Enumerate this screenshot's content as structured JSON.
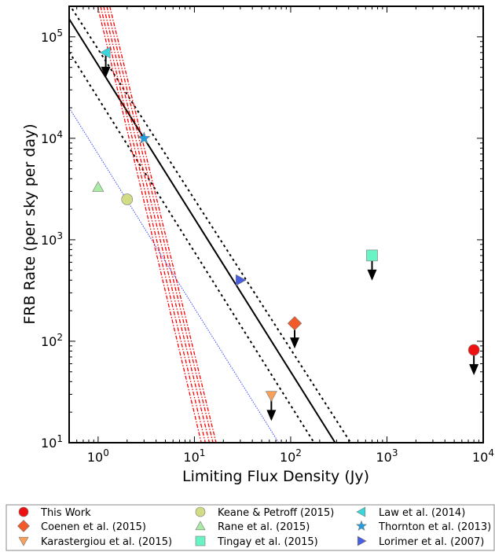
{
  "chart_data": {
    "type": "scatter",
    "xlabel": "Limiting Flux Density (Jy)",
    "ylabel": "FRB Rate (per sky per day)",
    "xscale": "log",
    "yscale": "log",
    "xlim": [
      0.5,
      10000
    ],
    "ylim": [
      10,
      200000
    ],
    "x_ticks": [
      {
        "value": 1,
        "base": "10",
        "exp": "0"
      },
      {
        "value": 10,
        "base": "10",
        "exp": "1"
      },
      {
        "value": 100,
        "base": "10",
        "exp": "2"
      },
      {
        "value": 1000,
        "base": "10",
        "exp": "3"
      },
      {
        "value": 10000,
        "base": "10",
        "exp": "4"
      }
    ],
    "y_ticks": [
      {
        "value": 10,
        "base": "10",
        "exp": "1"
      },
      {
        "value": 100,
        "base": "10",
        "exp": "2"
      },
      {
        "value": 1000,
        "base": "10",
        "exp": "3"
      },
      {
        "value": 10000,
        "base": "10",
        "exp": "4"
      },
      {
        "value": 100000,
        "base": "10",
        "exp": "5"
      }
    ],
    "grid": false,
    "legend_position": "below",
    "series": [
      {
        "name": "This Work",
        "marker": "circle",
        "color": "#ee1111",
        "x": 8000,
        "y": 82,
        "upper_limit": true
      },
      {
        "name": "Coenen et al. (2015)",
        "marker": "diamond",
        "color": "#f25a2a",
        "x": 110,
        "y": 150,
        "upper_limit": true
      },
      {
        "name": "Karastergiou et al. (2015)",
        "marker": "triangle-down",
        "color": "#f9a05a",
        "x": 63,
        "y": 29,
        "upper_limit": true
      },
      {
        "name": "Keane & Petroff (2015)",
        "marker": "circle",
        "color": "#d2dc84",
        "x": 2,
        "y": 2500,
        "upper_limit": false
      },
      {
        "name": "Rane et al. (2015)",
        "marker": "triangle-up",
        "color": "#a9eaa4",
        "x": 1,
        "y": 3300,
        "upper_limit": false
      },
      {
        "name": "Tingay et al. (2015)",
        "marker": "square",
        "color": "#6af3c4",
        "x": 700,
        "y": 700,
        "upper_limit": true
      },
      {
        "name": "Law et al. (2014)",
        "marker": "triangle-left",
        "color": "#39d6de",
        "x": 1.2,
        "y": 70000,
        "upper_limit": true
      },
      {
        "name": "Thornton et al. (2013)",
        "marker": "star",
        "color": "#1f9fe0",
        "x": 3,
        "y": 10000,
        "upper_limit": false
      },
      {
        "name": "Lorimer et al. (2007)",
        "marker": "triangle-right",
        "color": "#4a5ee0",
        "x": 30,
        "y": 400,
        "upper_limit": false
      }
    ],
    "lines": [
      {
        "style": "solid",
        "color": "#000000",
        "points": [
          [
            0.5,
            150000
          ],
          [
            290,
            10
          ]
        ]
      },
      {
        "style": "dotted",
        "color": "#000000",
        "points": [
          [
            0.5,
            71000
          ],
          [
            175,
            10
          ]
        ]
      },
      {
        "style": "dotted",
        "color": "#000000",
        "points": [
          [
            0.5,
            210000
          ],
          [
            420,
            10
          ]
        ]
      },
      {
        "style": "dotted",
        "color": "#3344ff",
        "points": [
          [
            0.5,
            20000
          ],
          [
            75,
            10
          ]
        ]
      },
      {
        "style": "dashdot",
        "color": "#ff0000",
        "points": [
          [
            0.99,
            200000
          ],
          [
            11.8,
            10
          ]
        ]
      },
      {
        "style": "dashdot",
        "color": "#ff0000",
        "points": [
          [
            1.06,
            200000
          ],
          [
            13.0,
            10
          ]
        ]
      },
      {
        "style": "dashdot",
        "color": "#ff0000",
        "points": [
          [
            1.14,
            200000
          ],
          [
            14.3,
            10
          ]
        ]
      },
      {
        "style": "dashdot",
        "color": "#ff0000",
        "points": [
          [
            1.23,
            200000
          ],
          [
            15.6,
            10
          ]
        ]
      },
      {
        "style": "dashdot",
        "color": "#ff0000",
        "points": [
          [
            1.32,
            200000
          ],
          [
            16.8,
            10
          ]
        ]
      }
    ]
  }
}
